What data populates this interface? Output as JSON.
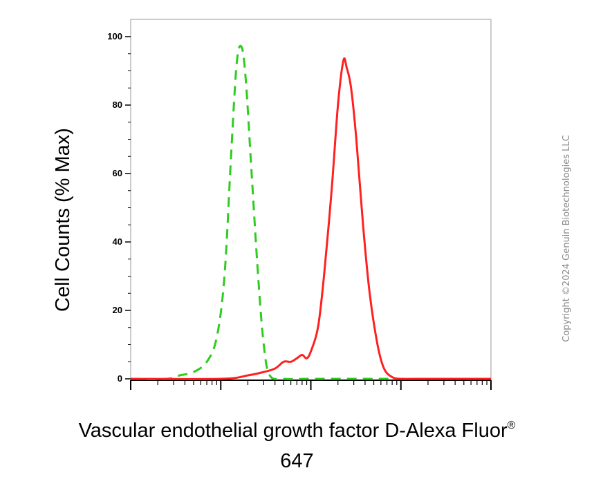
{
  "chart_data": {
    "type": "line",
    "xlabel": "Vascular endothelial growth factor D-Alexa Fluor",
    "xlabel_superscript": "®",
    "xlabel_line2": "647",
    "ylabel": "Cell Counts (% Max)",
    "ylim": [
      0,
      100
    ],
    "xscale": "log",
    "xlim": [
      0.1,
      1000
    ],
    "yticks": [
      0,
      20,
      40,
      60,
      80,
      100
    ],
    "grid": false,
    "series": [
      {
        "color": "#2ecc1e",
        "style": "dashed",
        "x": [
          0.1,
          0.25,
          0.35,
          0.5,
          0.7,
          0.9,
          1.1,
          1.3,
          1.5,
          1.7,
          1.9,
          2.2,
          2.6,
          3.0,
          3.5,
          5,
          10,
          50,
          200,
          1000
        ],
        "y": [
          0,
          0,
          1,
          2,
          5,
          12,
          30,
          65,
          92,
          97,
          87,
          60,
          30,
          10,
          1,
          0,
          0,
          0,
          0,
          0
        ]
      },
      {
        "color": "#ff2020",
        "style": "solid",
        "x": [
          0.1,
          1,
          2,
          3,
          4,
          5,
          6,
          7,
          8,
          9,
          10,
          12,
          14,
          17,
          20,
          23,
          25,
          28,
          32,
          38,
          45,
          55,
          65,
          80,
          100,
          150,
          1000
        ],
        "y": [
          0,
          0,
          1,
          2,
          3,
          5,
          5,
          6,
          7,
          6,
          8,
          15,
          30,
          55,
          80,
          93,
          91,
          85,
          70,
          45,
          25,
          10,
          3,
          0.5,
          0,
          0,
          0
        ]
      }
    ]
  },
  "watermark": "Copyright ©2024 Genuin Biotechnologies LLC"
}
